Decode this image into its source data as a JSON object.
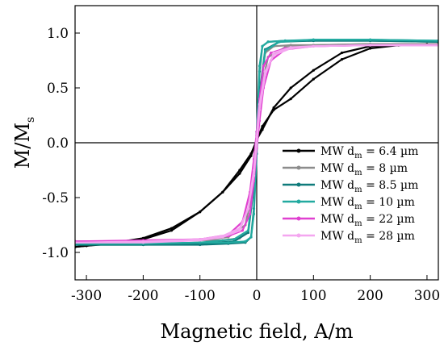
{
  "chart_data": {
    "type": "line",
    "xlabel": "Magnetic field, A/m",
    "ylabel": {
      "main": "M/M",
      "sub": "s"
    },
    "xlim": [
      -320,
      320
    ],
    "ylim": [
      -1.25,
      1.25
    ],
    "xticks": [
      -300,
      -200,
      -100,
      0,
      100,
      200,
      300
    ],
    "yticks": [
      1.0,
      0.5,
      0.0,
      -0.5,
      -1.0
    ],
    "xtick_labels": [
      "-300",
      "-200",
      "-100",
      "0",
      "100",
      "200",
      "300"
    ],
    "ytick_labels": [
      "1.0",
      "0.5",
      "0.0",
      "-0.5",
      "-1.0"
    ],
    "zero_lines": true,
    "grid": false,
    "legend_position": "bottom-right",
    "series": [
      {
        "name": "MW d",
        "sub": "m",
        "suffix": " = 6.4 µm",
        "color": "#000000",
        "loops": [
          {
            "x": [
              -320,
              -300,
              -250,
              -200,
              -150,
              -100,
              -60,
              -30,
              -10,
              0,
              10,
              30,
              60,
              100,
              150,
              200,
              250,
              300,
              320
            ],
            "y": [
              -0.95,
              -0.94,
              -0.92,
              -0.88,
              -0.8,
              -0.63,
              -0.45,
              -0.25,
              -0.1,
              0.02,
              0.15,
              0.3,
              0.4,
              0.58,
              0.76,
              0.86,
              0.89,
              0.9,
              0.9
            ]
          },
          {
            "x": [
              320,
              300,
              250,
              200,
              150,
              100,
              60,
              30,
              10,
              0,
              -10,
              -30,
              -60,
              -100,
              -150,
              -200,
              -250,
              -300,
              -320
            ],
            "y": [
              0.9,
              0.9,
              0.89,
              0.88,
              0.82,
              0.66,
              0.5,
              0.32,
              0.12,
              0.03,
              -0.12,
              -0.28,
              -0.45,
              -0.63,
              -0.78,
              -0.87,
              -0.91,
              -0.94,
              -0.95
            ]
          }
        ]
      },
      {
        "name": "MW d",
        "sub": "m",
        "suffix": " = 8 µm",
        "color": "#8c8c8c",
        "loops": [
          {
            "x": [
              -320,
              -200,
              -100,
              -50,
              -20,
              -8,
              0,
              8,
              15,
              30,
              60,
              100,
              200,
              320
            ],
            "y": [
              -0.9,
              -0.9,
              -0.89,
              -0.86,
              -0.75,
              -0.45,
              -0.05,
              0.55,
              0.82,
              0.88,
              0.89,
              0.89,
              0.9,
              0.9
            ]
          },
          {
            "x": [
              320,
              200,
              100,
              50,
              20,
              10,
              0,
              -8,
              -15,
              -30,
              -60,
              -100,
              -200,
              -320
            ],
            "y": [
              0.9,
              0.9,
              0.89,
              0.87,
              0.78,
              0.55,
              0.1,
              -0.5,
              -0.8,
              -0.87,
              -0.89,
              -0.89,
              -0.9,
              -0.9
            ]
          }
        ]
      },
      {
        "name": "MW d",
        "sub": "m",
        "suffix": " = 8.5 µm",
        "color": "#0f7b7b",
        "loops": [
          {
            "x": [
              -320,
              -200,
              -100,
              -40,
              -15,
              -5,
              0,
              5,
              10,
              20,
              50,
              100,
              200,
              320
            ],
            "y": [
              -0.93,
              -0.93,
              -0.92,
              -0.9,
              -0.82,
              -0.4,
              0.05,
              0.65,
              0.88,
              0.92,
              0.93,
              0.93,
              0.93,
              0.92
            ]
          },
          {
            "x": [
              320,
              200,
              100,
              40,
              15,
              5,
              0,
              -5,
              -10,
              -20,
              -50,
              -100,
              -200,
              -320
            ],
            "y": [
              0.92,
              0.93,
              0.93,
              0.92,
              0.85,
              0.45,
              -0.05,
              -0.6,
              -0.86,
              -0.91,
              -0.92,
              -0.93,
              -0.93,
              -0.93
            ]
          }
        ]
      },
      {
        "name": "MW d",
        "sub": "m",
        "suffix": " = 10 µm",
        "color": "#22aaa0",
        "loops": [
          {
            "x": [
              -320,
              -200,
              -100,
              -40,
              -15,
              -5,
              0,
              5,
              10,
              20,
              50,
              100,
              200,
              320
            ],
            "y": [
              -0.92,
              -0.92,
              -0.91,
              -0.88,
              -0.8,
              -0.35,
              0.1,
              0.7,
              0.88,
              0.92,
              0.93,
              0.94,
              0.94,
              0.93
            ]
          },
          {
            "x": [
              320,
              200,
              100,
              40,
              15,
              5,
              0,
              -5,
              -10,
              -20,
              -50,
              -100,
              -200,
              -320
            ],
            "y": [
              0.93,
              0.94,
              0.94,
              0.92,
              0.84,
              0.4,
              -0.1,
              -0.65,
              -0.86,
              -0.9,
              -0.91,
              -0.91,
              -0.92,
              -0.92
            ]
          }
        ]
      },
      {
        "name": "MW d",
        "sub": "m",
        "suffix": " = 22 µm",
        "color": "#e040d0",
        "loops": [
          {
            "x": [
              -320,
              -200,
              -100,
              -50,
              -25,
              -12,
              -5,
              0,
              5,
              12,
              25,
              50,
              100,
              200,
              320
            ],
            "y": [
              -0.9,
              -0.9,
              -0.88,
              -0.84,
              -0.72,
              -0.45,
              -0.15,
              0.1,
              0.4,
              0.7,
              0.82,
              0.86,
              0.88,
              0.89,
              0.89
            ]
          },
          {
            "x": [
              320,
              200,
              100,
              50,
              25,
              12,
              5,
              0,
              -5,
              -12,
              -25,
              -50,
              -100,
              -200,
              -320
            ],
            "y": [
              0.89,
              0.89,
              0.88,
              0.85,
              0.75,
              0.5,
              0.2,
              -0.05,
              -0.35,
              -0.65,
              -0.8,
              -0.85,
              -0.88,
              -0.89,
              -0.9
            ]
          }
        ]
      },
      {
        "name": "MW d",
        "sub": "m",
        "suffix": " = 28 µm",
        "color": "#f4a6f0",
        "loops": [
          {
            "x": [
              -320,
              -200,
              -100,
              -60,
              -30,
              -15,
              -5,
              0,
              5,
              15,
              30,
              60,
              100,
              200,
              320
            ],
            "y": [
              -0.91,
              -0.91,
              -0.89,
              -0.86,
              -0.8,
              -0.6,
              -0.25,
              0.05,
              0.35,
              0.65,
              0.8,
              0.86,
              0.88,
              0.89,
              0.89
            ]
          },
          {
            "x": [
              320,
              200,
              100,
              60,
              30,
              15,
              5,
              0,
              -5,
              -15,
              -30,
              -60,
              -100,
              -200,
              -320
            ],
            "y": [
              0.89,
              0.89,
              0.88,
              0.87,
              0.82,
              0.62,
              0.3,
              0.0,
              -0.3,
              -0.6,
              -0.78,
              -0.85,
              -0.88,
              -0.9,
              -0.91
            ]
          }
        ]
      }
    ]
  }
}
